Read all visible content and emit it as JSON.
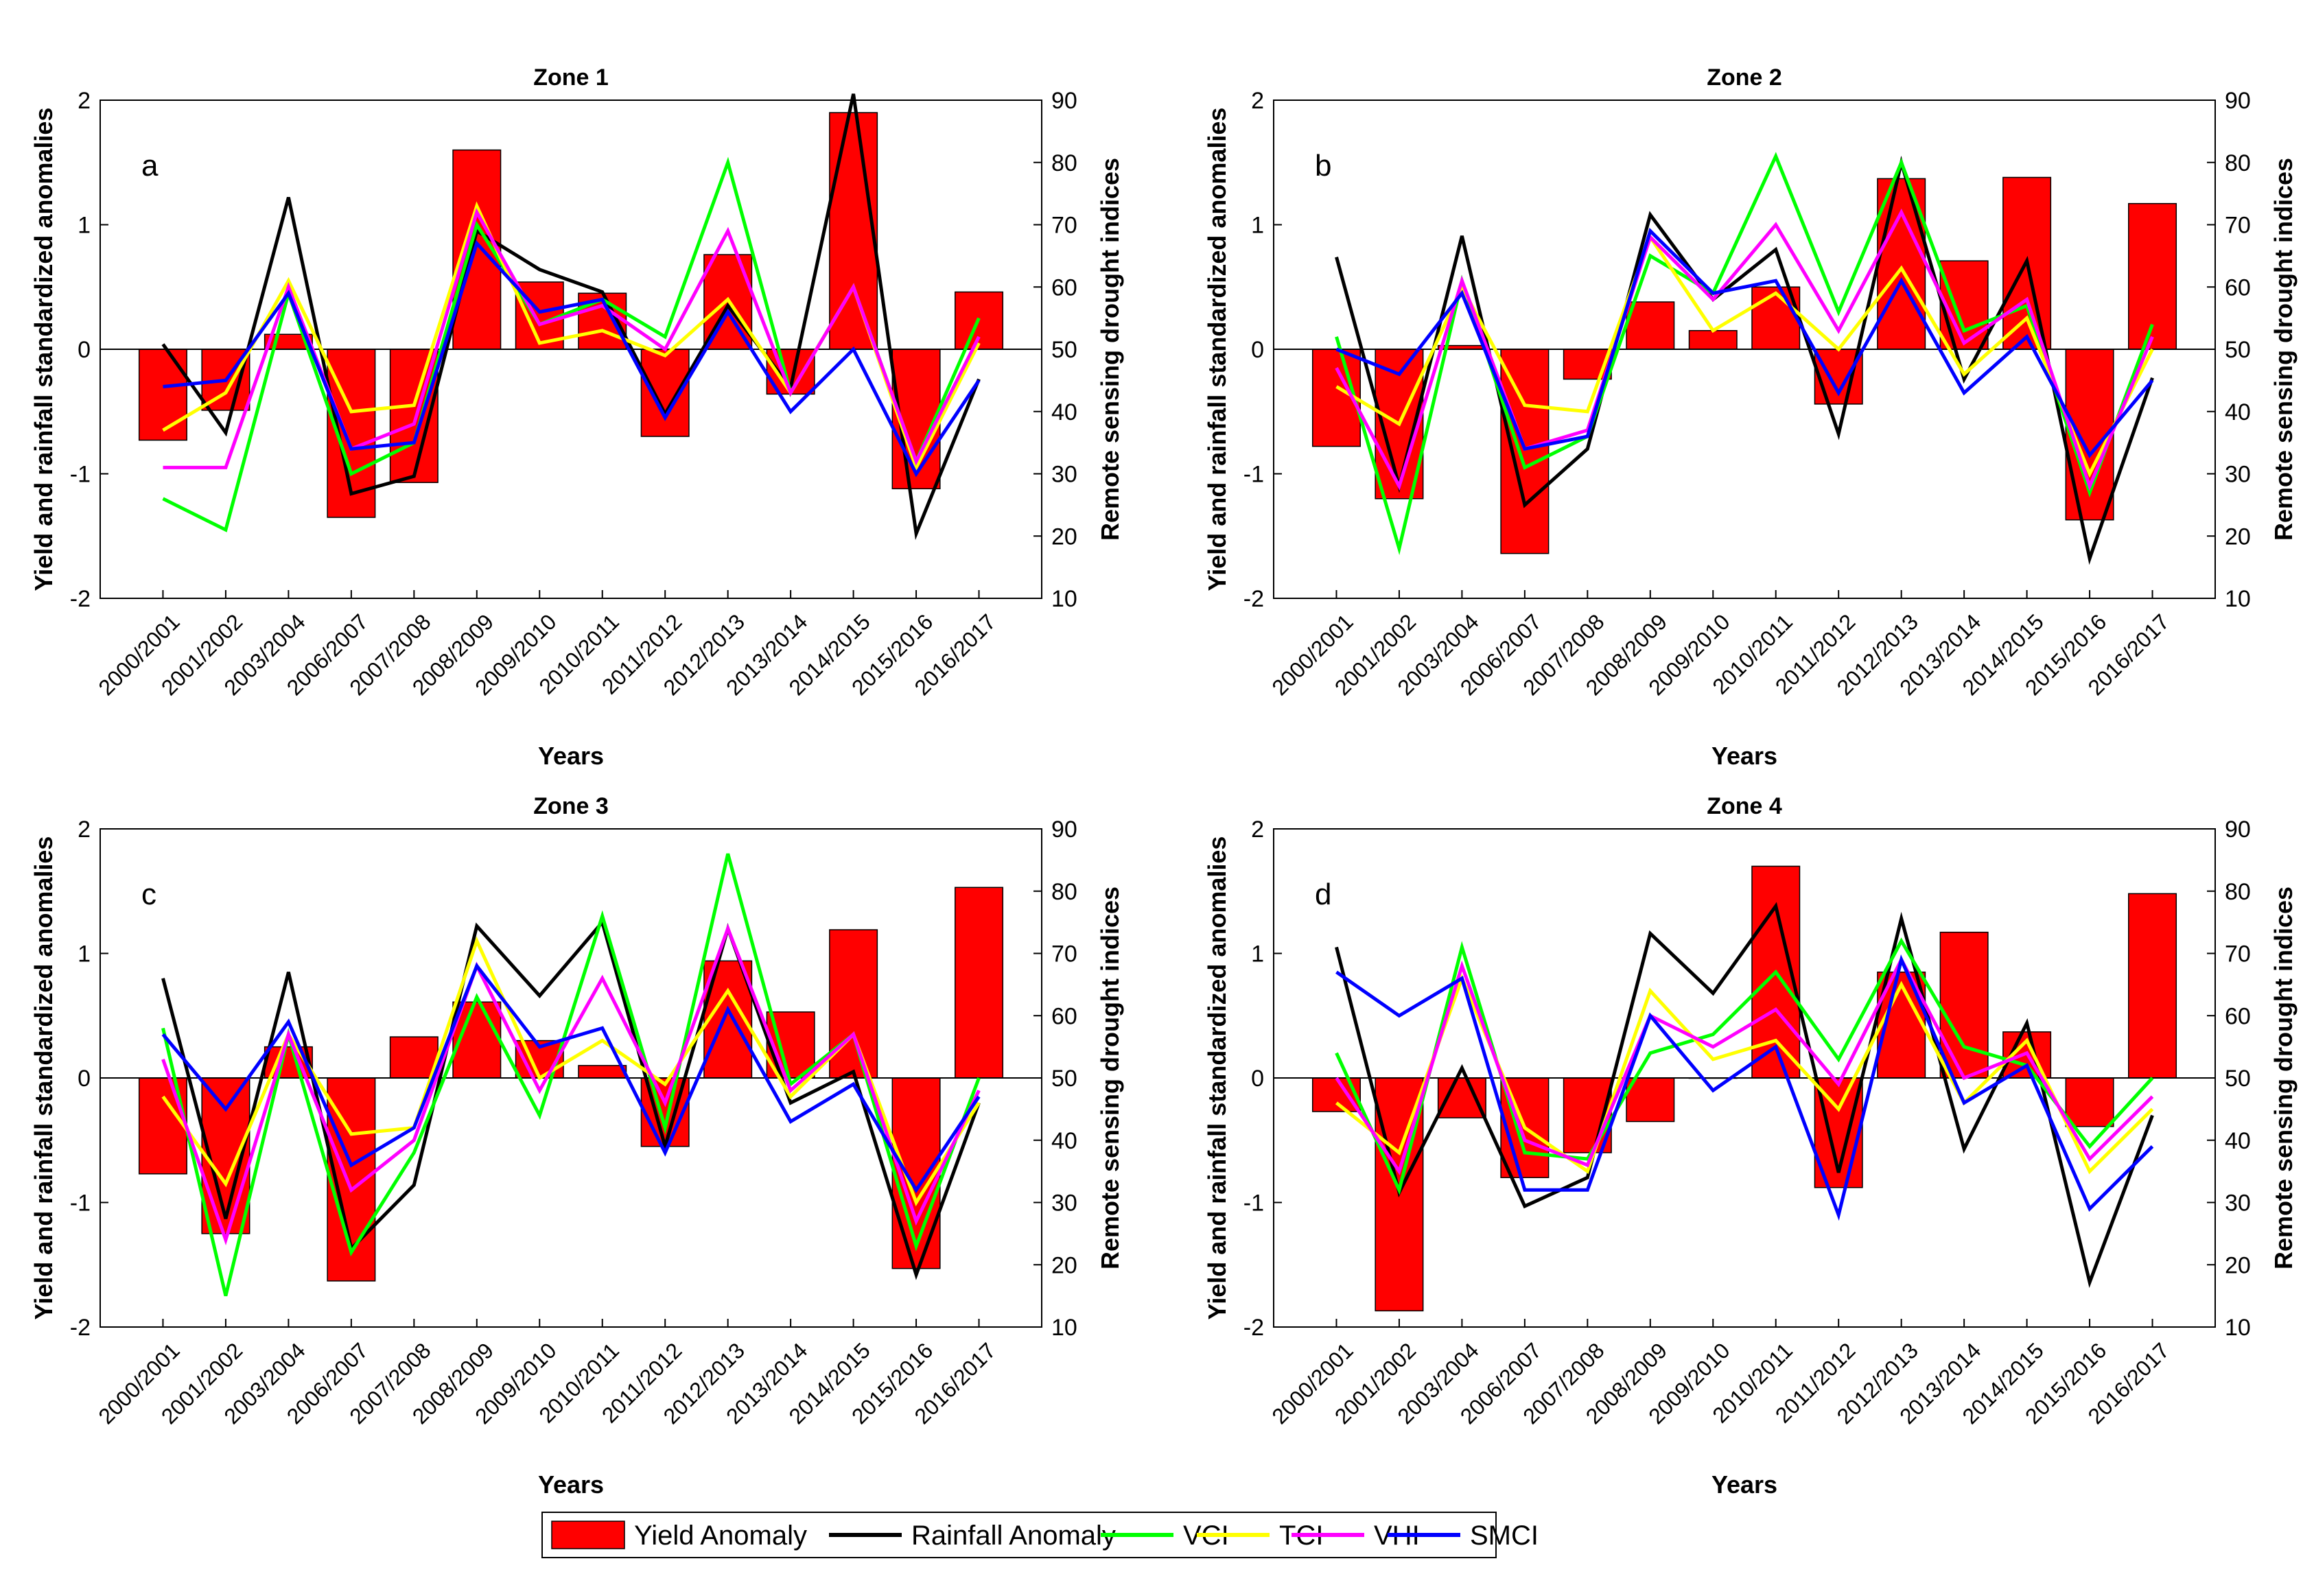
{
  "legend": {
    "items": [
      {
        "label": "Yield Anomaly",
        "kind": "bar",
        "color": "#ff0000"
      },
      {
        "label": "Rainfall Anomaly",
        "kind": "line",
        "color": "#000000"
      },
      {
        "label": "VCI",
        "kind": "line",
        "color": "#00ff00"
      },
      {
        "label": "TCI",
        "kind": "line",
        "color": "#ffff00"
      },
      {
        "label": "VHI",
        "kind": "line",
        "color": "#ff00ff"
      },
      {
        "label": "SMCI",
        "kind": "line",
        "color": "#0000ff"
      }
    ]
  },
  "chart_data": [
    {
      "type": "bar+line",
      "title": "Zone 1",
      "panel_label": "a",
      "xlabel": "Years",
      "ylabel": "Yield and rainfall standardized anomalies",
      "y2label": "Remote sensing drought indices",
      "ylim": [
        -2,
        2
      ],
      "y2lim": [
        10,
        90
      ],
      "yticks": [
        "-2",
        "-1",
        "0",
        "1",
        "2"
      ],
      "y2ticks": [
        "10",
        "20",
        "30",
        "40",
        "50",
        "60",
        "70",
        "80",
        "90"
      ],
      "categories": [
        "2000/2001",
        "2001/2002",
        "2003/2004",
        "2006/2007",
        "2007/2008",
        "2008/2009",
        "2009/2010",
        "2010/2011",
        "2011/2012",
        "2012/2013",
        "2013/2014",
        "2014/2015",
        "2015/2016",
        "2016/2017"
      ],
      "yield_anomaly": [
        -0.73,
        -0.49,
        0.12,
        -1.35,
        -1.07,
        1.6,
        0.54,
        0.45,
        -0.7,
        0.76,
        -0.36,
        1.9,
        -1.12,
        0.46
      ],
      "rainfall_anomaly": [
        0.04,
        -0.67,
        1.22,
        -1.16,
        -1.02,
        0.95,
        0.64,
        0.46,
        -0.52,
        0.35,
        -0.31,
        2.05,
        -1.48,
        -0.24
      ],
      "VCI": [
        26,
        21,
        59,
        30,
        35,
        70,
        54,
        58,
        52,
        80,
        43,
        60,
        32,
        55
      ],
      "TCI": [
        37,
        43,
        61,
        40,
        41,
        73,
        51,
        53,
        49,
        58,
        43,
        60,
        31,
        51
      ],
      "VHI": [
        31,
        31,
        60,
        34,
        38,
        72,
        54,
        57,
        50,
        69,
        43,
        60,
        32,
        52
      ],
      "SMCI": [
        44,
        45,
        59,
        34,
        35,
        67,
        56,
        58,
        39,
        56,
        40,
        50,
        30,
        45
      ]
    },
    {
      "type": "bar+line",
      "title": "Zone 2",
      "panel_label": "b",
      "xlabel": "Years",
      "ylabel": "Yield and rainfall standardized anomalies",
      "y2label": "Remote sensing drought indices",
      "ylim": [
        -2,
        2
      ],
      "y2lim": [
        10,
        90
      ],
      "yticks": [
        "-2",
        "-1",
        "0",
        "1",
        "2"
      ],
      "y2ticks": [
        "10",
        "20",
        "30",
        "40",
        "50",
        "60",
        "70",
        "80",
        "90"
      ],
      "categories": [
        "2000/2001",
        "2001/2002",
        "2003/2004",
        "2006/2007",
        "2007/2008",
        "2008/2009",
        "2009/2010",
        "2010/2011",
        "2011/2012",
        "2012/2013",
        "2013/2014",
        "2014/2015",
        "2015/2016",
        "2016/2017"
      ],
      "yield_anomaly": [
        -0.78,
        -1.2,
        0.03,
        -1.64,
        -0.24,
        0.38,
        0.15,
        0.5,
        -0.44,
        1.37,
        0.71,
        1.38,
        -1.37,
        1.17
      ],
      "rainfall_anomaly": [
        0.74,
        -1.1,
        0.91,
        -1.25,
        -0.8,
        1.08,
        0.4,
        0.8,
        -0.68,
        1.5,
        -0.24,
        0.71,
        -1.68,
        -0.23
      ],
      "VCI": [
        52,
        18,
        61,
        31,
        36,
        65,
        59,
        81,
        56,
        80,
        53,
        57,
        27,
        54
      ],
      "TCI": [
        44,
        38,
        60,
        41,
        40,
        68,
        53,
        59,
        50,
        63,
        46,
        55,
        30,
        50
      ],
      "VHI": [
        47,
        28,
        61,
        34,
        37,
        68,
        58,
        70,
        53,
        72,
        51,
        58,
        28,
        52
      ],
      "SMCI": [
        50,
        46,
        59,
        34,
        36,
        69,
        59,
        61,
        43,
        61,
        43,
        52,
        33,
        45
      ]
    },
    {
      "type": "bar+line",
      "title": "Zone 3",
      "panel_label": "c",
      "xlabel": "Years",
      "ylabel": "Yield and rainfall standardized anomalies",
      "y2label": "Remote sensing drought indices",
      "ylim": [
        -2,
        2
      ],
      "y2lim": [
        10,
        90
      ],
      "yticks": [
        "-2",
        "-1",
        "0",
        "1",
        "2"
      ],
      "y2ticks": [
        "10",
        "20",
        "30",
        "40",
        "50",
        "60",
        "70",
        "80",
        "90"
      ],
      "categories": [
        "2000/2001",
        "2001/2002",
        "2003/2004",
        "2006/2007",
        "2007/2008",
        "2008/2009",
        "2009/2010",
        "2010/2011",
        "2011/2012",
        "2012/2013",
        "2013/2014",
        "2014/2015",
        "2015/2016",
        "2016/2017"
      ],
      "yield_anomaly": [
        -0.77,
        -1.25,
        0.25,
        -1.63,
        0.33,
        0.61,
        0.3,
        0.1,
        -0.55,
        0.94,
        0.53,
        1.19,
        -1.53,
        1.53
      ],
      "rainfall_anomaly": [
        0.8,
        -1.13,
        0.85,
        -1.37,
        -0.86,
        1.22,
        0.66,
        1.25,
        -0.55,
        1.2,
        -0.2,
        0.05,
        -1.58,
        -0.2
      ],
      "VCI": [
        58,
        15,
        57,
        22,
        38,
        63,
        44,
        76,
        42,
        86,
        49,
        57,
        23,
        50
      ],
      "TCI": [
        47,
        33,
        57,
        41,
        42,
        72,
        50,
        56,
        49,
        64,
        47,
        57,
        30,
        46
      ],
      "VHI": [
        53,
        24,
        57,
        32,
        40,
        68,
        48,
        66,
        46,
        74,
        48,
        57,
        27,
        48
      ],
      "SMCI": [
        57,
        45,
        59,
        36,
        42,
        68,
        55,
        58,
        38,
        61,
        43,
        49,
        32,
        47
      ]
    },
    {
      "type": "bar+line",
      "title": "Zone 4",
      "panel_label": "d",
      "xlabel": "Years",
      "ylabel": "Yield and rainfall standardized anomalies",
      "y2label": "Remote sensing drought indices",
      "ylim": [
        -2,
        2
      ],
      "y2lim": [
        10,
        90
      ],
      "yticks": [
        "-2",
        "-1",
        "0",
        "1",
        "2"
      ],
      "y2ticks": [
        "10",
        "20",
        "30",
        "40",
        "50",
        "60",
        "70",
        "80",
        "90"
      ],
      "categories": [
        "2000/2001",
        "2001/2002",
        "2003/2004",
        "2006/2007",
        "2007/2008",
        "2008/2009",
        "2009/2010",
        "2010/2011",
        "2011/2012",
        "2012/2013",
        "2013/2014",
        "2014/2015",
        "2015/2016",
        "2016/2017"
      ],
      "yield_anomaly": [
        -0.27,
        -1.87,
        -0.32,
        -0.8,
        -0.6,
        -0.35,
        0.0,
        1.7,
        -0.88,
        0.85,
        1.17,
        0.37,
        -0.39,
        1.48
      ],
      "rainfall_anomaly": [
        1.05,
        -0.92,
        0.08,
        -1.03,
        -0.8,
        1.16,
        0.68,
        1.38,
        -0.76,
        1.28,
        -0.57,
        0.44,
        -1.64,
        -0.3
      ],
      "VCI": [
        54,
        32,
        71,
        38,
        37,
        54,
        57,
        67,
        53,
        72,
        55,
        52,
        39,
        50
      ],
      "TCI": [
        46,
        38,
        66,
        42,
        35,
        64,
        53,
        56,
        45,
        65,
        46,
        56,
        35,
        45
      ],
      "VHI": [
        50,
        35,
        68,
        40,
        36,
        60,
        55,
        61,
        49,
        69,
        50,
        54,
        37,
        47
      ],
      "SMCI": [
        67,
        60,
        66,
        32,
        32,
        60,
        48,
        55,
        28,
        69,
        46,
        52,
        29,
        39
      ]
    }
  ]
}
